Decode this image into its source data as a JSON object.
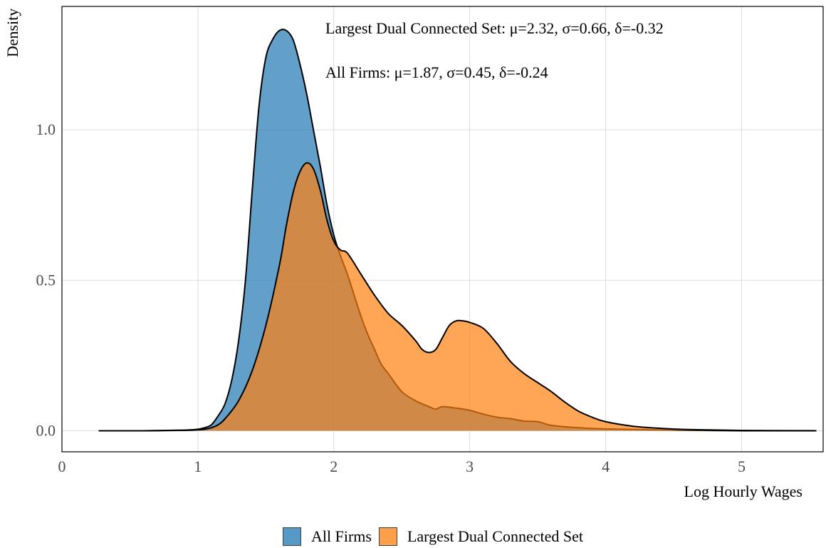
{
  "chart_data": {
    "type": "area",
    "xlabel": "Log Hourly Wages",
    "ylabel": "Density",
    "xlim": [
      0,
      5.6
    ],
    "ylim": [
      -0.07,
      1.41
    ],
    "xticks": [
      {
        "value": 0,
        "label": "0"
      },
      {
        "value": 1,
        "label": "1"
      },
      {
        "value": 2,
        "label": "2"
      },
      {
        "value": 3,
        "label": "3"
      },
      {
        "value": 4,
        "label": "4"
      },
      {
        "value": 5,
        "label": "5"
      }
    ],
    "yticks": [
      {
        "value": 0.0,
        "label": "0.0"
      },
      {
        "value": 0.5,
        "label": "0.5"
      },
      {
        "value": 1.0,
        "label": "1.0"
      }
    ],
    "grid": true,
    "legend_position": "bottom",
    "annotations": [
      "Largest Dual Connected Set: μ=2.32, σ=0.66, δ=-0.32",
      "All Firms: μ=1.87, σ=0.45, δ=-0.24"
    ],
    "series": [
      {
        "name": "All Firms",
        "color": "#1f77b4",
        "x": [
          0.27,
          0.6,
          0.9,
          1.0,
          1.05,
          1.1,
          1.15,
          1.2,
          1.25,
          1.3,
          1.35,
          1.4,
          1.45,
          1.5,
          1.55,
          1.6,
          1.65,
          1.7,
          1.75,
          1.8,
          1.85,
          1.9,
          1.95,
          2.0,
          2.05,
          2.1,
          2.15,
          2.2,
          2.25,
          2.3,
          2.35,
          2.4,
          2.5,
          2.6,
          2.7,
          2.75,
          2.8,
          2.9,
          3.0,
          3.1,
          3.2,
          3.3,
          3.4,
          3.5,
          3.6,
          3.8,
          4.0,
          4.5,
          5.0,
          5.55
        ],
        "y": [
          0.0,
          0.0,
          0.002,
          0.005,
          0.01,
          0.02,
          0.05,
          0.09,
          0.17,
          0.3,
          0.5,
          0.8,
          1.08,
          1.24,
          1.3,
          1.33,
          1.33,
          1.3,
          1.22,
          1.12,
          1.0,
          0.88,
          0.75,
          0.65,
          0.58,
          0.52,
          0.45,
          0.38,
          0.32,
          0.27,
          0.22,
          0.19,
          0.13,
          0.1,
          0.08,
          0.072,
          0.08,
          0.075,
          0.068,
          0.055,
          0.045,
          0.04,
          0.032,
          0.03,
          0.018,
          0.01,
          0.006,
          0.002,
          0.0,
          0.0
        ]
      },
      {
        "name": "Largest Dual Connected Set",
        "color": "#ff7f0e",
        "x": [
          0.27,
          0.6,
          0.9,
          1.0,
          1.05,
          1.1,
          1.15,
          1.2,
          1.3,
          1.4,
          1.5,
          1.6,
          1.65,
          1.7,
          1.75,
          1.8,
          1.85,
          1.9,
          1.95,
          2.0,
          2.05,
          2.1,
          2.2,
          2.3,
          2.4,
          2.5,
          2.6,
          2.65,
          2.7,
          2.75,
          2.8,
          2.85,
          2.9,
          2.95,
          3.0,
          3.1,
          3.2,
          3.3,
          3.4,
          3.5,
          3.6,
          3.7,
          3.8,
          3.9,
          4.0,
          4.2,
          4.4,
          4.6,
          5.0,
          5.55
        ],
        "y": [
          0.0,
          0.0,
          0.001,
          0.003,
          0.005,
          0.01,
          0.02,
          0.04,
          0.1,
          0.2,
          0.35,
          0.55,
          0.68,
          0.79,
          0.86,
          0.89,
          0.87,
          0.8,
          0.7,
          0.63,
          0.6,
          0.59,
          0.52,
          0.45,
          0.39,
          0.35,
          0.3,
          0.27,
          0.26,
          0.27,
          0.31,
          0.35,
          0.365,
          0.365,
          0.36,
          0.34,
          0.29,
          0.23,
          0.19,
          0.16,
          0.13,
          0.095,
          0.065,
          0.045,
          0.03,
          0.015,
          0.008,
          0.004,
          0.001,
          0.0
        ]
      }
    ]
  }
}
